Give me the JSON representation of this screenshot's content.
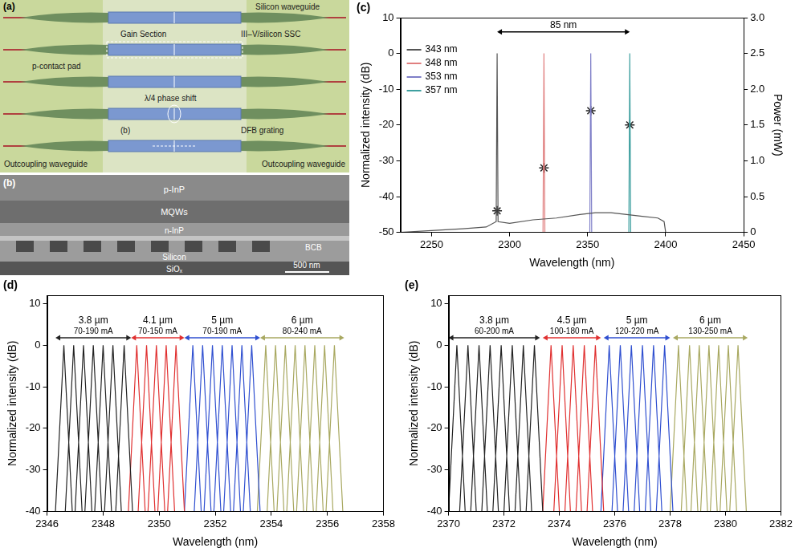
{
  "diagrams": [
    {
      "panel": "(a)",
      "labels": {
        "silicon_waveguide": "Silicon waveguide",
        "gain_section": "Gain Section",
        "ssc": "III–V/silicon SSC",
        "p_contact": "p-contact pad",
        "phase_shift": "λ/4 phase shift",
        "cross_section": "(b)",
        "grating": "DFB grating",
        "outcoupling_left": "Outcoupling waveguide",
        "outcoupling_right": "Outcoupling waveguide"
      }
    },
    {
      "panel": "(b)",
      "layers": [
        "p-InP",
        "MQWs",
        "n-InP",
        "BCB",
        "Silicon",
        "SiOₓ"
      ],
      "scale_bar": "500 nm"
    }
  ],
  "chart_data": [
    {
      "panel": "(c)",
      "type": "line",
      "x_label": "Wavelength (nm)",
      "y_label": "Normalized intensity (dB)",
      "y2_label": "Power (mW)",
      "xlim": [
        2230,
        2450
      ],
      "xticks": [
        2250,
        2300,
        2350,
        2400,
        2450
      ],
      "ylim": [
        -50,
        10
      ],
      "yticks": [
        -50,
        -40,
        -30,
        -20,
        -10,
        0,
        10
      ],
      "y2lim": [
        0,
        3
      ],
      "y2ticks": [
        0,
        0.5,
        {
          "value": 1,
          "label": "1.0"
        },
        1.5,
        {
          "value": 2,
          "label": "2.0"
        },
        2.5,
        {
          "value": 3,
          "label": "3.0"
        }
      ],
      "grid": false,
      "legend": "top-left",
      "series": [
        {
          "name": "343 nm",
          "color": "#555555",
          "x": [
            2230,
            2250,
            2270,
            2285,
            2291.4,
            2292,
            2292.6,
            2300,
            2315,
            2330,
            2345,
            2355,
            2365,
            2375,
            2385,
            2395,
            2399,
            2400
          ],
          "values": [
            -50,
            -49.5,
            -49,
            -48.5,
            -47,
            0,
            -47,
            -47.5,
            -46.5,
            -46,
            -45,
            -44.5,
            -44.5,
            -45,
            -45.5,
            -46,
            -47,
            -50
          ]
        },
        {
          "name": "348 nm",
          "color": "#e07f7f",
          "x": [
            2321.4,
            2322,
            2322.6
          ],
          "values": [
            -50,
            0,
            -50
          ]
        },
        {
          "name": "353 nm",
          "color": "#7f7fc8",
          "x": [
            2351.4,
            2352,
            2352.6
          ],
          "values": [
            -50,
            0,
            -50
          ]
        },
        {
          "name": "357 nm",
          "color": "#3fa0a0",
          "x": [
            2376.4,
            2377,
            2377.6
          ],
          "values": [
            -50,
            0,
            -50
          ]
        },
        {
          "type": "scatter",
          "marker": "star",
          "color": "#222222",
          "axis": "y2",
          "x": [
            2292,
            2322,
            2352,
            2377
          ],
          "values": [
            0.3,
            0.9,
            1.7,
            1.5
          ]
        }
      ],
      "annotations": [
        {
          "texts": [
            "85 nm"
          ],
          "x": [
            2292,
            2377
          ],
          "y": 6
        }
      ]
    },
    {
      "panel": "(d)",
      "type": "line",
      "x_label": "Wavelength (nm)",
      "y_label": "Normalized intensity (dB)",
      "xlim": [
        2346,
        2358
      ],
      "xticks": [
        2346,
        2348,
        2350,
        2352,
        2354,
        2356,
        2358
      ],
      "ylim": [
        -40,
        12
      ],
      "yticks": [
        -40,
        -30,
        -20,
        -10,
        0,
        10
      ],
      "grid": false,
      "series": [
        {
          "color": "#222222",
          "x": [
            2346.3,
            2346.6,
            2346.9,
            2346.65,
            2346.95,
            2347.25,
            2347.0,
            2347.3,
            2347.6,
            2347.35,
            2347.65,
            2347.95,
            2347.7,
            2348.0,
            2348.3,
            2348.05,
            2348.35,
            2348.65,
            2348.45,
            2348.75,
            2349.05
          ],
          "values": [
            -40,
            0,
            -40,
            -40,
            0,
            -40,
            -40,
            0,
            -40,
            -40,
            0,
            -40,
            -40,
            0,
            -40,
            -40,
            0,
            -40,
            -40,
            0,
            -40
          ]
        },
        {
          "color": "#e03030",
          "x": [
            2348.9,
            2349.2,
            2349.5,
            2349.25,
            2349.55,
            2349.85,
            2349.6,
            2349.9,
            2350.2,
            2349.95,
            2350.25,
            2350.55,
            2350.3,
            2350.6,
            2350.9
          ],
          "values": [
            -40,
            0,
            -40,
            -40,
            0,
            -40,
            -40,
            0,
            -40,
            -40,
            0,
            -40,
            -40,
            0,
            -40
          ]
        },
        {
          "color": "#2f4fd0",
          "x": [
            2350.9,
            2351.2,
            2351.5,
            2351.25,
            2351.55,
            2351.85,
            2351.6,
            2351.9,
            2352.2,
            2351.95,
            2352.25,
            2352.55,
            2352.3,
            2352.6,
            2352.9,
            2352.65,
            2352.95,
            2353.25,
            2353.0,
            2353.3,
            2353.6
          ],
          "values": [
            -40,
            0,
            -40,
            -40,
            0,
            -40,
            -40,
            0,
            -40,
            -40,
            0,
            -40,
            -40,
            0,
            -40,
            -40,
            0,
            -40,
            -40,
            0,
            -40
          ]
        },
        {
          "color": "#a8a860",
          "x": [
            2353.5,
            2353.8,
            2354.1,
            2353.85,
            2354.15,
            2354.45,
            2354.2,
            2354.5,
            2354.8,
            2354.55,
            2354.85,
            2355.15,
            2354.9,
            2355.2,
            2355.5,
            2355.25,
            2355.55,
            2355.85,
            2355.6,
            2355.9,
            2356.2,
            2355.95,
            2356.25,
            2356.55
          ],
          "values": [
            -40,
            0,
            -40,
            -40,
            0,
            -40,
            -40,
            0,
            -40,
            -40,
            0,
            -40,
            -40,
            0,
            -40,
            -40,
            0,
            -40,
            -40,
            0,
            -40,
            -40,
            0,
            -40
          ]
        }
      ],
      "annotations": [
        {
          "texts": [
            "3.8 µm",
            "70-190 mA"
          ],
          "x": [
            2346.3,
            2349.0
          ],
          "y": 1.8,
          "color": "#222222"
        },
        {
          "texts": [
            "4.1 µm",
            "70-150 mA"
          ],
          "x": [
            2349.0,
            2350.9
          ],
          "y": 1.8,
          "color": "#e03030"
        },
        {
          "texts": [
            "5 µm",
            "70-190 mA"
          ],
          "x": [
            2350.9,
            2353.6
          ],
          "y": 1.8,
          "color": "#2f4fd0"
        },
        {
          "texts": [
            "6 µm",
            "80-240 mA"
          ],
          "x": [
            2353.6,
            2356.6
          ],
          "y": 1.8,
          "color": "#a8a860"
        }
      ]
    },
    {
      "panel": "(e)",
      "type": "line",
      "x_label": "Wavelength (nm)",
      "y_label": "Normalized intensity (dB)",
      "xlim": [
        2370,
        2382
      ],
      "xticks": [
        2370,
        2372,
        2374,
        2376,
        2378,
        2380,
        2382
      ],
      "ylim": [
        -40,
        12
      ],
      "yticks": [
        -40,
        -30,
        -20,
        -10,
        0,
        10
      ],
      "grid": false,
      "series": [
        {
          "color": "#222222",
          "x": [
            2370.0,
            2370.3,
            2370.6,
            2370.4,
            2370.7,
            2371.0,
            2370.8,
            2371.1,
            2371.4,
            2371.2,
            2371.5,
            2371.8,
            2371.6,
            2371.9,
            2372.2,
            2372.0,
            2372.3,
            2372.6,
            2372.4,
            2372.7,
            2373.0,
            2372.8,
            2373.1,
            2373.4
          ],
          "values": [
            -40,
            0,
            -40,
            -40,
            0,
            -40,
            -40,
            0,
            -40,
            -40,
            0,
            -40,
            -40,
            0,
            -40,
            -40,
            0,
            -40,
            -40,
            0,
            -40,
            -40,
            0,
            -40
          ]
        },
        {
          "color": "#e03030",
          "x": [
            2373.4,
            2373.7,
            2374.0,
            2373.8,
            2374.1,
            2374.4,
            2374.2,
            2374.5,
            2374.8,
            2374.6,
            2374.9,
            2375.2,
            2375.0,
            2375.3,
            2375.6
          ],
          "values": [
            -40,
            0,
            -40,
            -40,
            0,
            -40,
            -40,
            0,
            -40,
            -40,
            0,
            -40,
            -40,
            0,
            -40
          ]
        },
        {
          "color": "#2f4fd0",
          "x": [
            2375.5,
            2375.8,
            2376.1,
            2375.9,
            2376.2,
            2376.5,
            2376.3,
            2376.6,
            2376.9,
            2376.7,
            2377.0,
            2377.3,
            2377.1,
            2377.4,
            2377.7,
            2377.5,
            2377.8,
            2378.1
          ],
          "values": [
            -40,
            0,
            -40,
            -40,
            0,
            -40,
            -40,
            0,
            -40,
            -40,
            0,
            -40,
            -40,
            0,
            -40,
            -40,
            0,
            -40
          ]
        },
        {
          "color": "#a8a860",
          "x": [
            2378.0,
            2378.3,
            2378.6,
            2378.4,
            2378.7,
            2379.0,
            2378.75,
            2379.05,
            2379.35,
            2379.1,
            2379.4,
            2379.7,
            2379.45,
            2379.75,
            2380.05,
            2379.8,
            2380.1,
            2380.4,
            2380.15,
            2380.45,
            2380.75
          ],
          "values": [
            -40,
            0,
            -40,
            -40,
            0,
            -40,
            -40,
            0,
            -40,
            -40,
            0,
            -40,
            -40,
            0,
            -40,
            -40,
            0,
            -40,
            -40,
            0,
            -40
          ]
        }
      ],
      "annotations": [
        {
          "texts": [
            "3.8 µm",
            "60-200 mA"
          ],
          "x": [
            2370.0,
            2373.3
          ],
          "y": 1.8,
          "color": "#222222"
        },
        {
          "texts": [
            "4.5 µm",
            "100-180 mA"
          ],
          "x": [
            2373.4,
            2375.5
          ],
          "y": 1.8,
          "color": "#e03030"
        },
        {
          "texts": [
            "5 µm",
            "120-220 mA"
          ],
          "x": [
            2375.6,
            2378.0
          ],
          "y": 1.8,
          "color": "#2f4fd0"
        },
        {
          "texts": [
            "6 µm",
            "130-250 mA"
          ],
          "x": [
            2378.1,
            2380.8
          ],
          "y": 1.8,
          "color": "#a8a860"
        }
      ]
    }
  ]
}
